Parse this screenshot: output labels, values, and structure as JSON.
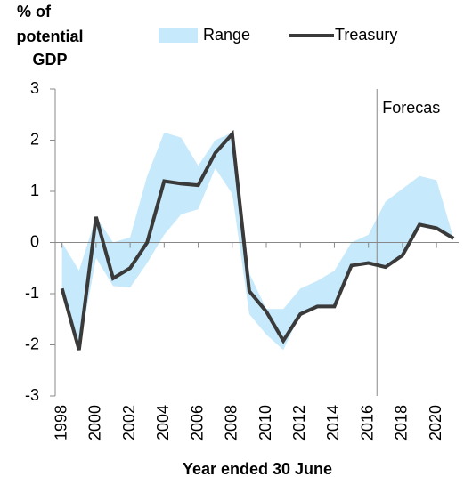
{
  "chart_data": {
    "type": "line",
    "ylabel": [
      "% of",
      "potential",
      "GDP"
    ],
    "xlabel": "Year ended 30 June",
    "x": [
      1998,
      1999,
      2000,
      2001,
      2002,
      2003,
      2004,
      2005,
      2006,
      2007,
      2008,
      2009,
      2010,
      2011,
      2012,
      2013,
      2014,
      2015,
      2016,
      2017,
      2018,
      2019,
      2020,
      2021
    ],
    "band": {
      "name": "Range",
      "color": "#c6e9fb",
      "upper": [
        0.0,
        -0.55,
        0.5,
        0.0,
        0.1,
        1.3,
        2.15,
        2.05,
        1.5,
        2.0,
        2.15,
        -0.6,
        -1.3,
        -1.3,
        -0.9,
        -0.75,
        -0.55,
        0.0,
        0.15,
        0.8,
        1.05,
        1.3,
        1.22,
        0.08
      ],
      "lower": [
        -0.9,
        -2.1,
        -0.3,
        -0.85,
        -0.88,
        -0.4,
        0.15,
        0.55,
        0.65,
        1.45,
        0.95,
        -1.4,
        -1.8,
        -2.1,
        -1.4,
        -1.25,
        -1.25,
        -0.45,
        -0.4,
        -0.48,
        -0.25,
        0.35,
        0.28,
        0.08
      ]
    },
    "series": [
      {
        "name": "Treasury",
        "color": "#3a3a3a",
        "values": [
          -0.9,
          -2.1,
          0.5,
          -0.7,
          -0.5,
          0.0,
          1.2,
          1.15,
          1.12,
          1.75,
          2.12,
          -0.95,
          -1.35,
          -1.92,
          -1.4,
          -1.25,
          -1.25,
          -0.45,
          -0.4,
          -0.48,
          -0.25,
          0.35,
          0.28,
          0.08
        ]
      }
    ],
    "xlim": [
      1997.6,
      2021.3
    ],
    "xticks": [
      1998,
      2000,
      2002,
      2004,
      2006,
      2008,
      2010,
      2012,
      2014,
      2016,
      2018,
      2020
    ],
    "ylim": [
      -3,
      3
    ],
    "yticks": [
      -3,
      -2,
      -1,
      0,
      1,
      2,
      3
    ],
    "forecast_line": {
      "x": 2016.5,
      "label": "Forecas"
    }
  }
}
